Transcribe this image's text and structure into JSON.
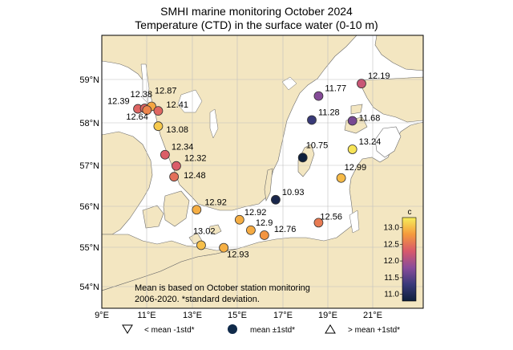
{
  "title": "SMHI marine monitoring October 2024",
  "subtitle": "Temperature (CTD) in the surface water (0-10 m)",
  "note_lines": [
    "Mean is based on October station monitoring",
    "2006-2020. *standard deviation."
  ],
  "colorbar": {
    "label": "c",
    "ticks": [
      "13.0",
      "12.5",
      "12.0",
      "11.5",
      "11.0"
    ],
    "range": [
      10.8,
      13.3
    ]
  },
  "axes": {
    "lon_ticks": [
      "9°E",
      "11°E",
      "13°E",
      "15°E",
      "17°E",
      "19°E",
      "21°E"
    ],
    "lat_ticks": [
      "59°N",
      "58°N",
      "57°N",
      "56°N",
      "55°N",
      "54°N"
    ]
  },
  "legend": {
    "below": "< mean -1std*",
    "within": "mean ±1std*",
    "above": "> mean +1std*"
  },
  "colors": {
    "land": "#f3e6c1",
    "sea": "#ffffff",
    "low": "#102a4a",
    "mid": "#8a4c9a",
    "high": "#f5e94e"
  },
  "chart_data": {
    "type": "scatter",
    "x_unit": "longitude °E",
    "y_unit": "latitude °N",
    "stations": [
      {
        "label": "12.39",
        "lon": 10.6,
        "lat": 58.29,
        "value": 12.39
      },
      {
        "label": "12.38",
        "lon": 10.9,
        "lat": 58.3,
        "value": 12.38
      },
      {
        "label": "12.87",
        "lon": 11.2,
        "lat": 58.35,
        "value": 12.87
      },
      {
        "label": "12.64",
        "lon": 11.0,
        "lat": 58.26,
        "value": 12.64
      },
      {
        "label": "12.41",
        "lon": 11.5,
        "lat": 58.24,
        "value": 12.41
      },
      {
        "label": "13.08",
        "lon": 11.5,
        "lat": 57.87,
        "value": 13.08
      },
      {
        "label": "12.34",
        "lon": 11.8,
        "lat": 57.18,
        "value": 12.34
      },
      {
        "label": "12.32",
        "lon": 12.3,
        "lat": 56.91,
        "value": 12.32
      },
      {
        "label": "12.48",
        "lon": 12.2,
        "lat": 56.65,
        "value": 12.48
      },
      {
        "label": "12.92",
        "lon": 13.2,
        "lat": 55.86,
        "value": 12.92
      },
      {
        "label": "13.02",
        "lon": 13.4,
        "lat": 55.01,
        "value": 13.02
      },
      {
        "label": "12.93",
        "lon": 14.4,
        "lat": 54.95,
        "value": 12.93
      },
      {
        "label": "12.92",
        "lon": 15.1,
        "lat": 55.62,
        "value": 12.92
      },
      {
        "label": "12.9",
        "lon": 15.6,
        "lat": 55.37,
        "value": 12.9
      },
      {
        "label": "12.76",
        "lon": 16.2,
        "lat": 55.25,
        "value": 12.76
      },
      {
        "label": "10.93",
        "lon": 16.7,
        "lat": 56.1,
        "value": 10.93
      },
      {
        "label": "10.75",
        "lon": 17.9,
        "lat": 57.11,
        "value": 10.75
      },
      {
        "label": "11.28",
        "lon": 18.3,
        "lat": 58.02,
        "value": 11.28
      },
      {
        "label": "11.77",
        "lon": 18.6,
        "lat": 58.6,
        "value": 11.77
      },
      {
        "label": "12.19",
        "lon": 20.5,
        "lat": 58.9,
        "value": 12.19
      },
      {
        "label": "11.68",
        "lon": 20.1,
        "lat": 58.0,
        "value": 11.68
      },
      {
        "label": "13.24",
        "lon": 20.1,
        "lat": 57.31,
        "value": 13.24
      },
      {
        "label": "12.99",
        "lon": 19.6,
        "lat": 56.62,
        "value": 12.99
      },
      {
        "label": "12.56",
        "lon": 18.6,
        "lat": 55.55,
        "value": 12.56
      }
    ]
  }
}
